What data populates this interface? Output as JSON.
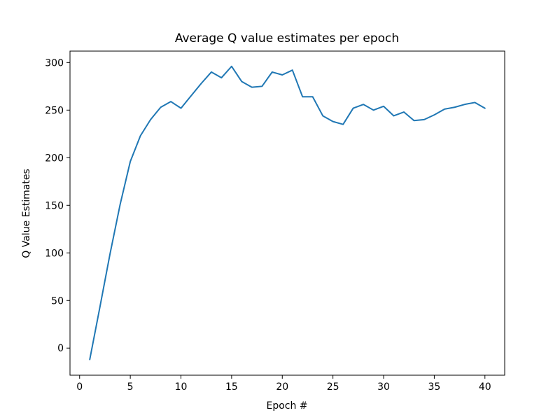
{
  "chart_data": {
    "type": "line",
    "title": "Average Q value estimates per epoch",
    "xlabel": "Epoch #",
    "ylabel": "Q Value Estimates",
    "xlim": [
      -0.95,
      41.95
    ],
    "ylim": [
      -28.5,
      312
    ],
    "xticks": [
      0,
      5,
      10,
      15,
      20,
      25,
      30,
      35,
      40
    ],
    "yticks": [
      0,
      50,
      100,
      150,
      200,
      250,
      300
    ],
    "grid": false,
    "line_color": "#1f77b4",
    "series": [
      {
        "name": "Average Q value",
        "x": [
          1,
          2,
          3,
          4,
          5,
          6,
          7,
          8,
          9,
          10,
          11,
          12,
          13,
          14,
          15,
          16,
          17,
          18,
          19,
          20,
          21,
          22,
          23,
          24,
          25,
          26,
          27,
          28,
          29,
          30,
          31,
          32,
          33,
          34,
          35,
          36,
          37,
          38,
          39,
          40
        ],
        "values": [
          -12,
          43,
          99,
          151,
          196,
          223,
          240,
          253,
          259,
          252,
          265,
          278,
          290,
          284,
          296,
          280,
          274,
          275,
          290,
          287,
          292,
          264,
          264,
          244,
          238,
          235,
          252,
          256,
          250,
          254,
          244,
          248,
          239,
          240,
          245,
          251,
          253,
          256,
          258,
          252
        ]
      }
    ]
  }
}
